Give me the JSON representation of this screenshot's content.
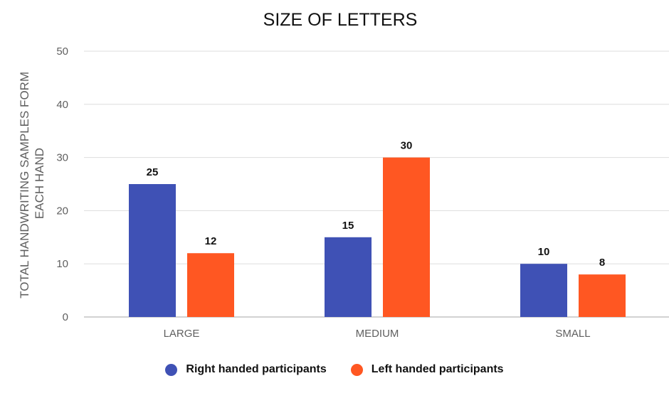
{
  "chart_data": {
    "type": "bar",
    "title": "SIZE OF LETTERS",
    "ylabel_lines": [
      "TOTAL HANDWRITING SAMPLES FORM",
      "EACH HAND"
    ],
    "ylim": [
      0,
      50
    ],
    "y_ticks": [
      0,
      10,
      20,
      30,
      40,
      50
    ],
    "categories": [
      "LARGE",
      "MEDIUM",
      "SMALL"
    ],
    "series": [
      {
        "name": "Right handed participants",
        "values": [
          25,
          15,
          10
        ],
        "color": "#3f51b5"
      },
      {
        "name": "Left handed participants",
        "values": [
          12,
          30,
          8
        ],
        "color": "#ff5722"
      }
    ],
    "data_labels": true,
    "grid": true,
    "legend_position": "bottom"
  }
}
